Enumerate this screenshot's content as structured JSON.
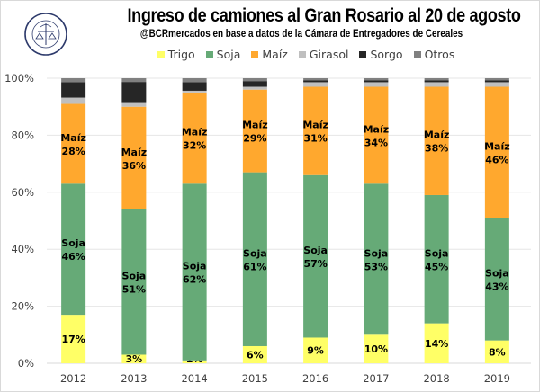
{
  "header": {
    "title": "Ingreso de camiones al Gran Rosario al 20 de agosto",
    "subtitle": "@BCRmercados en base a datos de la Cámara de Entregadores de Cereales",
    "logo_text": "BOLSA DE COMERCIO DE ROSARIO"
  },
  "chart_data": {
    "type": "bar",
    "stacked": true,
    "percent": true,
    "title": "Ingreso de camiones al Gran Rosario al 20 de agosto",
    "subtitle": "@BCRmercados en base a datos de la Cámara de Entregadores de Cereales",
    "xlabel": "",
    "ylabel": "",
    "ylim": [
      0,
      100
    ],
    "yticks": [
      "0%",
      "20%",
      "40%",
      "60%",
      "80%",
      "100%"
    ],
    "grid": true,
    "legend_position": "top",
    "categories": [
      "2012",
      "2013",
      "2014",
      "2015",
      "2016",
      "2017",
      "2018",
      "2019"
    ],
    "series": [
      {
        "name": "Trigo",
        "color": "#FFFF66",
        "values": [
          17,
          3,
          1,
          6,
          9,
          10,
          14,
          8
        ],
        "labels": [
          "17%",
          "3%",
          "1%",
          "6%",
          "9%",
          "10%",
          "14%",
          "8%"
        ],
        "label_prefix": ""
      },
      {
        "name": "Soja",
        "color": "#66AA77",
        "values": [
          46,
          51,
          62,
          61,
          57,
          53,
          45,
          43
        ],
        "labels": [
          "46%",
          "51%",
          "62%",
          "61%",
          "57%",
          "53%",
          "45%",
          "43%"
        ],
        "label_prefix": "Soja"
      },
      {
        "name": "Maíz",
        "color": "#FFA82E",
        "values": [
          28,
          36,
          32,
          29,
          31,
          34,
          38,
          46
        ],
        "labels": [
          "28%",
          "36%",
          "32%",
          "29%",
          "31%",
          "34%",
          "38%",
          "46%"
        ],
        "label_prefix": "Maíz"
      },
      {
        "name": "Girasol",
        "color": "#BFBFBF",
        "values": [
          2.2,
          1.3,
          0.6,
          1.0,
          1.6,
          1.6,
          1.6,
          1.6
        ],
        "labels": null
      },
      {
        "name": "Sorgo",
        "color": "#262626",
        "values": [
          5.4,
          7.4,
          3.0,
          2.0,
          0.7,
          0.7,
          0.7,
          0.7
        ],
        "labels": null
      },
      {
        "name": "Otros",
        "color": "#808080",
        "values": [
          1.4,
          1.3,
          1.4,
          1.0,
          0.7,
          0.7,
          0.7,
          0.7
        ],
        "labels": null
      }
    ]
  }
}
